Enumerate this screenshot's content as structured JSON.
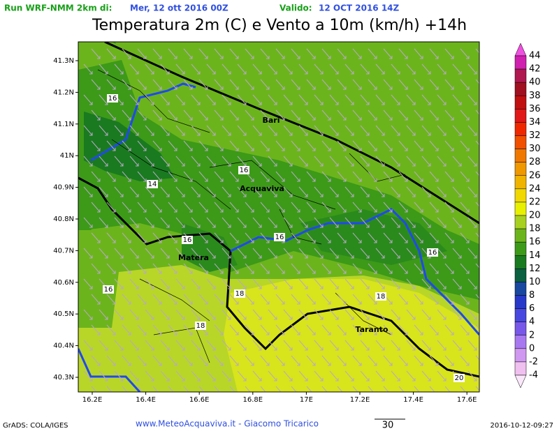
{
  "header": {
    "run_label": "Run WRF-NMM 2km di:",
    "run_date": "Mer, 12 ott 2016 00Z",
    "valid_label": "Valido:",
    "valid_date": "12 OCT 2016 14Z"
  },
  "title": "Temperatura 2m (C) e Vento a 10m (km/h) +14h",
  "map": {
    "lat_labels": [
      "41.3N",
      "41.2N",
      "41.1N",
      "41N",
      "40.9N",
      "40.8N",
      "40.7N",
      "40.6N",
      "40.5N",
      "40.4N",
      "40.3N"
    ],
    "lon_labels": [
      "16.2E",
      "16.4E",
      "16.6E",
      "16.8E",
      "17E",
      "17.2E",
      "17.4E",
      "17.6E"
    ],
    "cities": [
      "Bari",
      "Acquaviva",
      "Matera",
      "Taranto"
    ],
    "contour_labels": [
      "16",
      "14",
      "16",
      "16",
      "16",
      "18",
      "18",
      "16",
      "18",
      "20",
      "16"
    ]
  },
  "colorbar": {
    "labels": [
      "44",
      "42",
      "40",
      "38",
      "36",
      "34",
      "32",
      "30",
      "28",
      "26",
      "24",
      "22",
      "20",
      "18",
      "16",
      "14",
      "12",
      "10",
      "8",
      "6",
      "4",
      "2",
      "0",
      "-2",
      "-4"
    ],
    "colors": [
      "#f050e0",
      "#d020b0",
      "#b01850",
      "#a01020",
      "#c01010",
      "#e01818",
      "#f02800",
      "#f05000",
      "#f07800",
      "#f09800",
      "#f0b400",
      "#f0d800",
      "#e8f000",
      "#a8d020",
      "#6cb41c",
      "#3c9a18",
      "#1a7a20",
      "#0a6040",
      "#1848a0",
      "#2838c8",
      "#4848e0",
      "#7858e8",
      "#a878f0",
      "#d098f0",
      "#f0c0f0",
      "#fae8fa"
    ]
  },
  "footer": {
    "left": "GrADS: COLA/IGES",
    "center": "www.MeteoAcquaviva.it - Giacomo Tricarico",
    "scale": "30",
    "timestamp": "2016-10-12-09:27"
  }
}
